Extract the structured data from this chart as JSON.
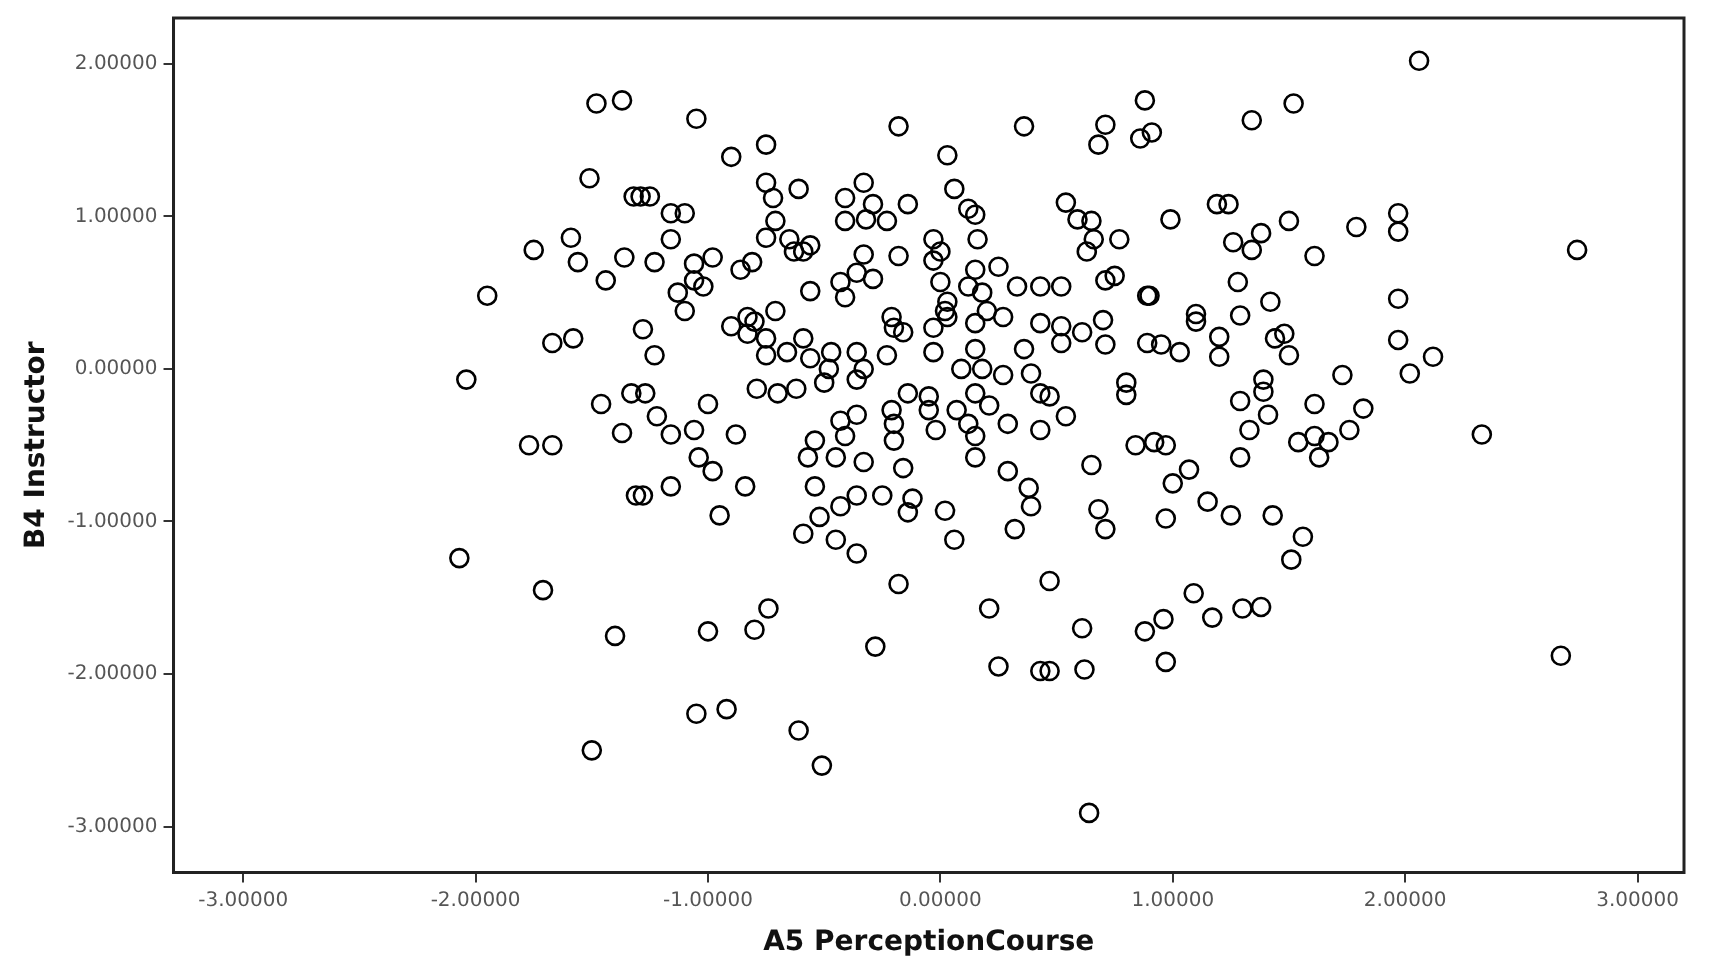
{
  "chart_data": {
    "type": "scatter",
    "xlabel": "A5 PerceptionCourse",
    "ylabel": "B4 Instructor",
    "xlim": [
      -3.3,
      3.2
    ],
    "ylim": [
      -3.3,
      2.3
    ],
    "xticks": [
      {
        "value": -3,
        "label": "-3.00000"
      },
      {
        "value": -2,
        "label": "-2.00000"
      },
      {
        "value": -1,
        "label": "-1.00000"
      },
      {
        "value": 0,
        "label": "0.00000"
      },
      {
        "value": 1,
        "label": "1.00000"
      },
      {
        "value": 2,
        "label": "2.00000"
      },
      {
        "value": 3,
        "label": "3.00000"
      }
    ],
    "yticks": [
      {
        "value": -3,
        "label": "-3.00000"
      },
      {
        "value": -2,
        "label": "-2.00000"
      },
      {
        "value": -1,
        "label": "-1.00000"
      },
      {
        "value": 0,
        "label": "0.00000"
      },
      {
        "value": 1,
        "label": "1.00000"
      },
      {
        "value": 2,
        "label": "2.00000"
      }
    ],
    "grid": false,
    "legend": false,
    "marker": "circle",
    "series": [
      {
        "color": "#000000",
        "x": [
          -1.37,
          -1.48,
          -1.51,
          -1.32,
          -1.59,
          -1.75,
          -1.56,
          -1.36,
          -1.44,
          -1.95,
          -1.67,
          -1.58,
          -2.04,
          -1.46,
          -1.33,
          -1.37,
          -1.77,
          -1.67,
          -1.31,
          -2.07,
          -1.71,
          -1.4,
          -1.5,
          -1.05,
          -0.18,
          0.36,
          0.71,
          0.68,
          0.88,
          0.86,
          -0.75,
          -0.9,
          0.03,
          -0.75,
          -0.61,
          -0.33,
          -1.29,
          -1.25,
          0.06,
          -0.72,
          -0.41,
          -0.29,
          -0.14,
          0.12,
          0.54,
          -1.16,
          -1.1,
          -0.41,
          -0.32,
          -0.23,
          -0.71,
          0.15,
          0.59,
          0.65,
          -1.16,
          -0.75,
          -0.65,
          -0.56,
          -0.03,
          0.16,
          0.66,
          0.77,
          -1.23,
          -1.06,
          -0.98,
          -0.63,
          -0.59,
          -0.33,
          -0.18,
          -0.03,
          0.0,
          0.63,
          -0.86,
          -0.81,
          -1.06,
          -0.36,
          -0.29,
          0.15,
          0.25,
          0.71,
          0.75,
          -1.13,
          -1.02,
          -0.56,
          -0.43,
          -0.41,
          0.0,
          0.03,
          0.12,
          0.18,
          0.33,
          0.43,
          0.52,
          -1.1,
          0.02,
          0.2,
          0.89,
          -1.28,
          -0.9,
          -0.83,
          -0.8,
          -0.71,
          -0.21,
          -0.2,
          -0.16,
          -0.03,
          0.03,
          0.15,
          0.27,
          0.43,
          0.52,
          0.61,
          0.7,
          -0.83,
          -0.75,
          -0.59,
          -0.47,
          -0.36,
          -0.23,
          -0.03,
          0.15,
          0.36,
          0.52,
          0.71,
          -1.23,
          -0.75,
          -0.66,
          -0.56,
          -0.48,
          -0.33,
          0.09,
          0.18,
          0.27,
          0.39,
          -0.79,
          -0.7,
          -0.62,
          -0.5,
          -0.36,
          -0.14,
          -0.05,
          0.15,
          0.8,
          0.8,
          -1.27,
          -1.0,
          -1.22,
          -1.16,
          -1.06,
          -0.88,
          -0.54,
          -0.43,
          -0.36,
          -0.41,
          -0.21,
          -0.2,
          -0.05,
          -0.02,
          0.07,
          0.12,
          0.21,
          0.29,
          0.15,
          0.43,
          0.47,
          0.54,
          0.84,
          0.43,
          -1.28,
          -1.16,
          -1.04,
          -0.98,
          -0.84,
          -0.95,
          -0.57,
          -0.45,
          -0.33,
          -0.54,
          -0.52,
          -0.59,
          -0.45,
          -0.36,
          -0.43,
          -0.36,
          -0.25,
          -0.16,
          -0.12,
          -0.14,
          0.02,
          0.06,
          0.15,
          0.29,
          0.38,
          0.39,
          0.32,
          0.65,
          0.68,
          0.71,
          -0.2,
          -0.18,
          0.21,
          0.47,
          0.61,
          0.88,
          -0.74,
          -0.8,
          -1.0,
          -0.28,
          0.25,
          0.43,
          0.47,
          0.62,
          -1.05,
          -0.92,
          -0.61,
          -0.51,
          0.64,
          2.06,
          1.52,
          1.34,
          0.91,
          0.99,
          1.19,
          1.24,
          1.26,
          1.34,
          1.38,
          1.5,
          1.61,
          1.79,
          1.97,
          1.97,
          2.74,
          0.9,
          1.28,
          1.42,
          1.29,
          1.1,
          1.1,
          1.97,
          0.89,
          0.95,
          1.03,
          1.2,
          1.2,
          1.44,
          1.48,
          1.5,
          1.97,
          2.12,
          2.02,
          1.73,
          1.39,
          1.39,
          1.29,
          1.41,
          1.61,
          1.82,
          1.33,
          1.76,
          2.33,
          1.54,
          1.61,
          1.67,
          0.92,
          0.97,
          1.29,
          1.63,
          1.0,
          1.07,
          1.15,
          1.25,
          0.97,
          1.43,
          1.56,
          1.51,
          1.09,
          1.17,
          1.3,
          1.38,
          0.96,
          0.97,
          2.67
        ],
        "values": [
          1.76,
          1.74,
          1.25,
          1.13,
          0.86,
          0.78,
          0.7,
          0.73,
          0.58,
          0.48,
          0.17,
          0.2,
          -0.07,
          -0.23,
          -0.16,
          -0.42,
          -0.5,
          -0.5,
          -0.83,
          -1.24,
          -1.45,
          -1.75,
          -2.5,
          1.64,
          1.59,
          1.59,
          1.6,
          1.47,
          1.76,
          1.51,
          1.47,
          1.39,
          1.4,
          1.22,
          1.18,
          1.22,
          1.13,
          1.13,
          1.18,
          1.12,
          1.12,
          1.08,
          1.08,
          1.05,
          1.09,
          1.02,
          1.02,
          0.97,
          0.98,
          0.97,
          0.97,
          1.01,
          0.98,
          0.97,
          0.85,
          0.86,
          0.85,
          0.81,
          0.85,
          0.85,
          0.85,
          0.85,
          0.7,
          0.69,
          0.73,
          0.77,
          0.77,
          0.75,
          0.74,
          0.71,
          0.77,
          0.77,
          0.65,
          0.7,
          0.58,
          0.63,
          0.59,
          0.65,
          0.67,
          0.58,
          0.61,
          0.5,
          0.54,
          0.51,
          0.57,
          0.47,
          0.57,
          0.44,
          0.54,
          0.5,
          0.54,
          0.54,
          0.54,
          0.38,
          0.38,
          0.38,
          0.48,
          0.26,
          0.28,
          0.34,
          0.31,
          0.38,
          0.34,
          0.27,
          0.24,
          0.27,
          0.34,
          0.3,
          0.34,
          0.3,
          0.28,
          0.24,
          0.32,
          0.23,
          0.2,
          0.2,
          0.11,
          0.11,
          0.09,
          0.11,
          0.13,
          0.13,
          0.17,
          0.16,
          0.09,
          0.09,
          0.11,
          0.07,
          0.0,
          0.0,
          0.0,
          0.0,
          -0.04,
          -0.03,
          -0.13,
          -0.16,
          -0.13,
          -0.09,
          -0.07,
          -0.16,
          -0.18,
          -0.16,
          -0.09,
          -0.17,
          -0.16,
          -0.23,
          -0.31,
          -0.43,
          -0.4,
          -0.43,
          -0.47,
          -0.34,
          -0.3,
          -0.44,
          -0.27,
          -0.36,
          -0.27,
          -0.4,
          -0.27,
          -0.36,
          -0.24,
          -0.36,
          -0.44,
          -0.4,
          -0.18,
          -0.31,
          -0.5,
          -0.16,
          -0.83,
          -0.77,
          -0.58,
          -0.67,
          -0.77,
          -0.96,
          -0.58,
          -0.58,
          -0.61,
          -0.77,
          -0.97,
          -1.08,
          -1.12,
          -1.21,
          -0.9,
          -0.83,
          -0.83,
          -0.65,
          -0.85,
          -0.94,
          -0.93,
          -1.12,
          -0.58,
          -0.67,
          -0.78,
          -0.9,
          -1.05,
          -0.63,
          -0.92,
          -1.05,
          -0.47,
          -1.41,
          -1.57,
          -1.39,
          -1.7,
          -1.72,
          -1.57,
          -1.71,
          -1.72,
          -1.82,
          -1.95,
          -1.98,
          -1.98,
          -1.97,
          -2.26,
          -2.23,
          -2.37,
          -2.6,
          -2.91,
          2.02,
          1.74,
          1.63,
          1.55,
          0.98,
          1.08,
          1.08,
          0.83,
          0.78,
          0.89,
          0.97,
          0.74,
          0.93,
          1.02,
          0.9,
          0.78,
          0.48,
          0.57,
          0.44,
          0.35,
          0.36,
          0.31,
          0.46,
          0.17,
          0.16,
          0.11,
          0.21,
          0.08,
          0.2,
          0.23,
          0.09,
          0.19,
          0.08,
          -0.03,
          -0.04,
          -0.07,
          -0.15,
          -0.21,
          -0.3,
          -0.23,
          -0.26,
          -0.4,
          -0.4,
          -0.43,
          -0.48,
          -0.44,
          -0.48,
          -0.48,
          -0.5,
          -0.58,
          -0.58,
          -0.75,
          -0.66,
          -0.87,
          -0.96,
          -0.98,
          -0.96,
          -1.1,
          -1.25,
          -1.47,
          -1.63,
          -1.57,
          -1.56,
          -1.64,
          -1.92,
          -1.88
        ]
      }
    ]
  }
}
